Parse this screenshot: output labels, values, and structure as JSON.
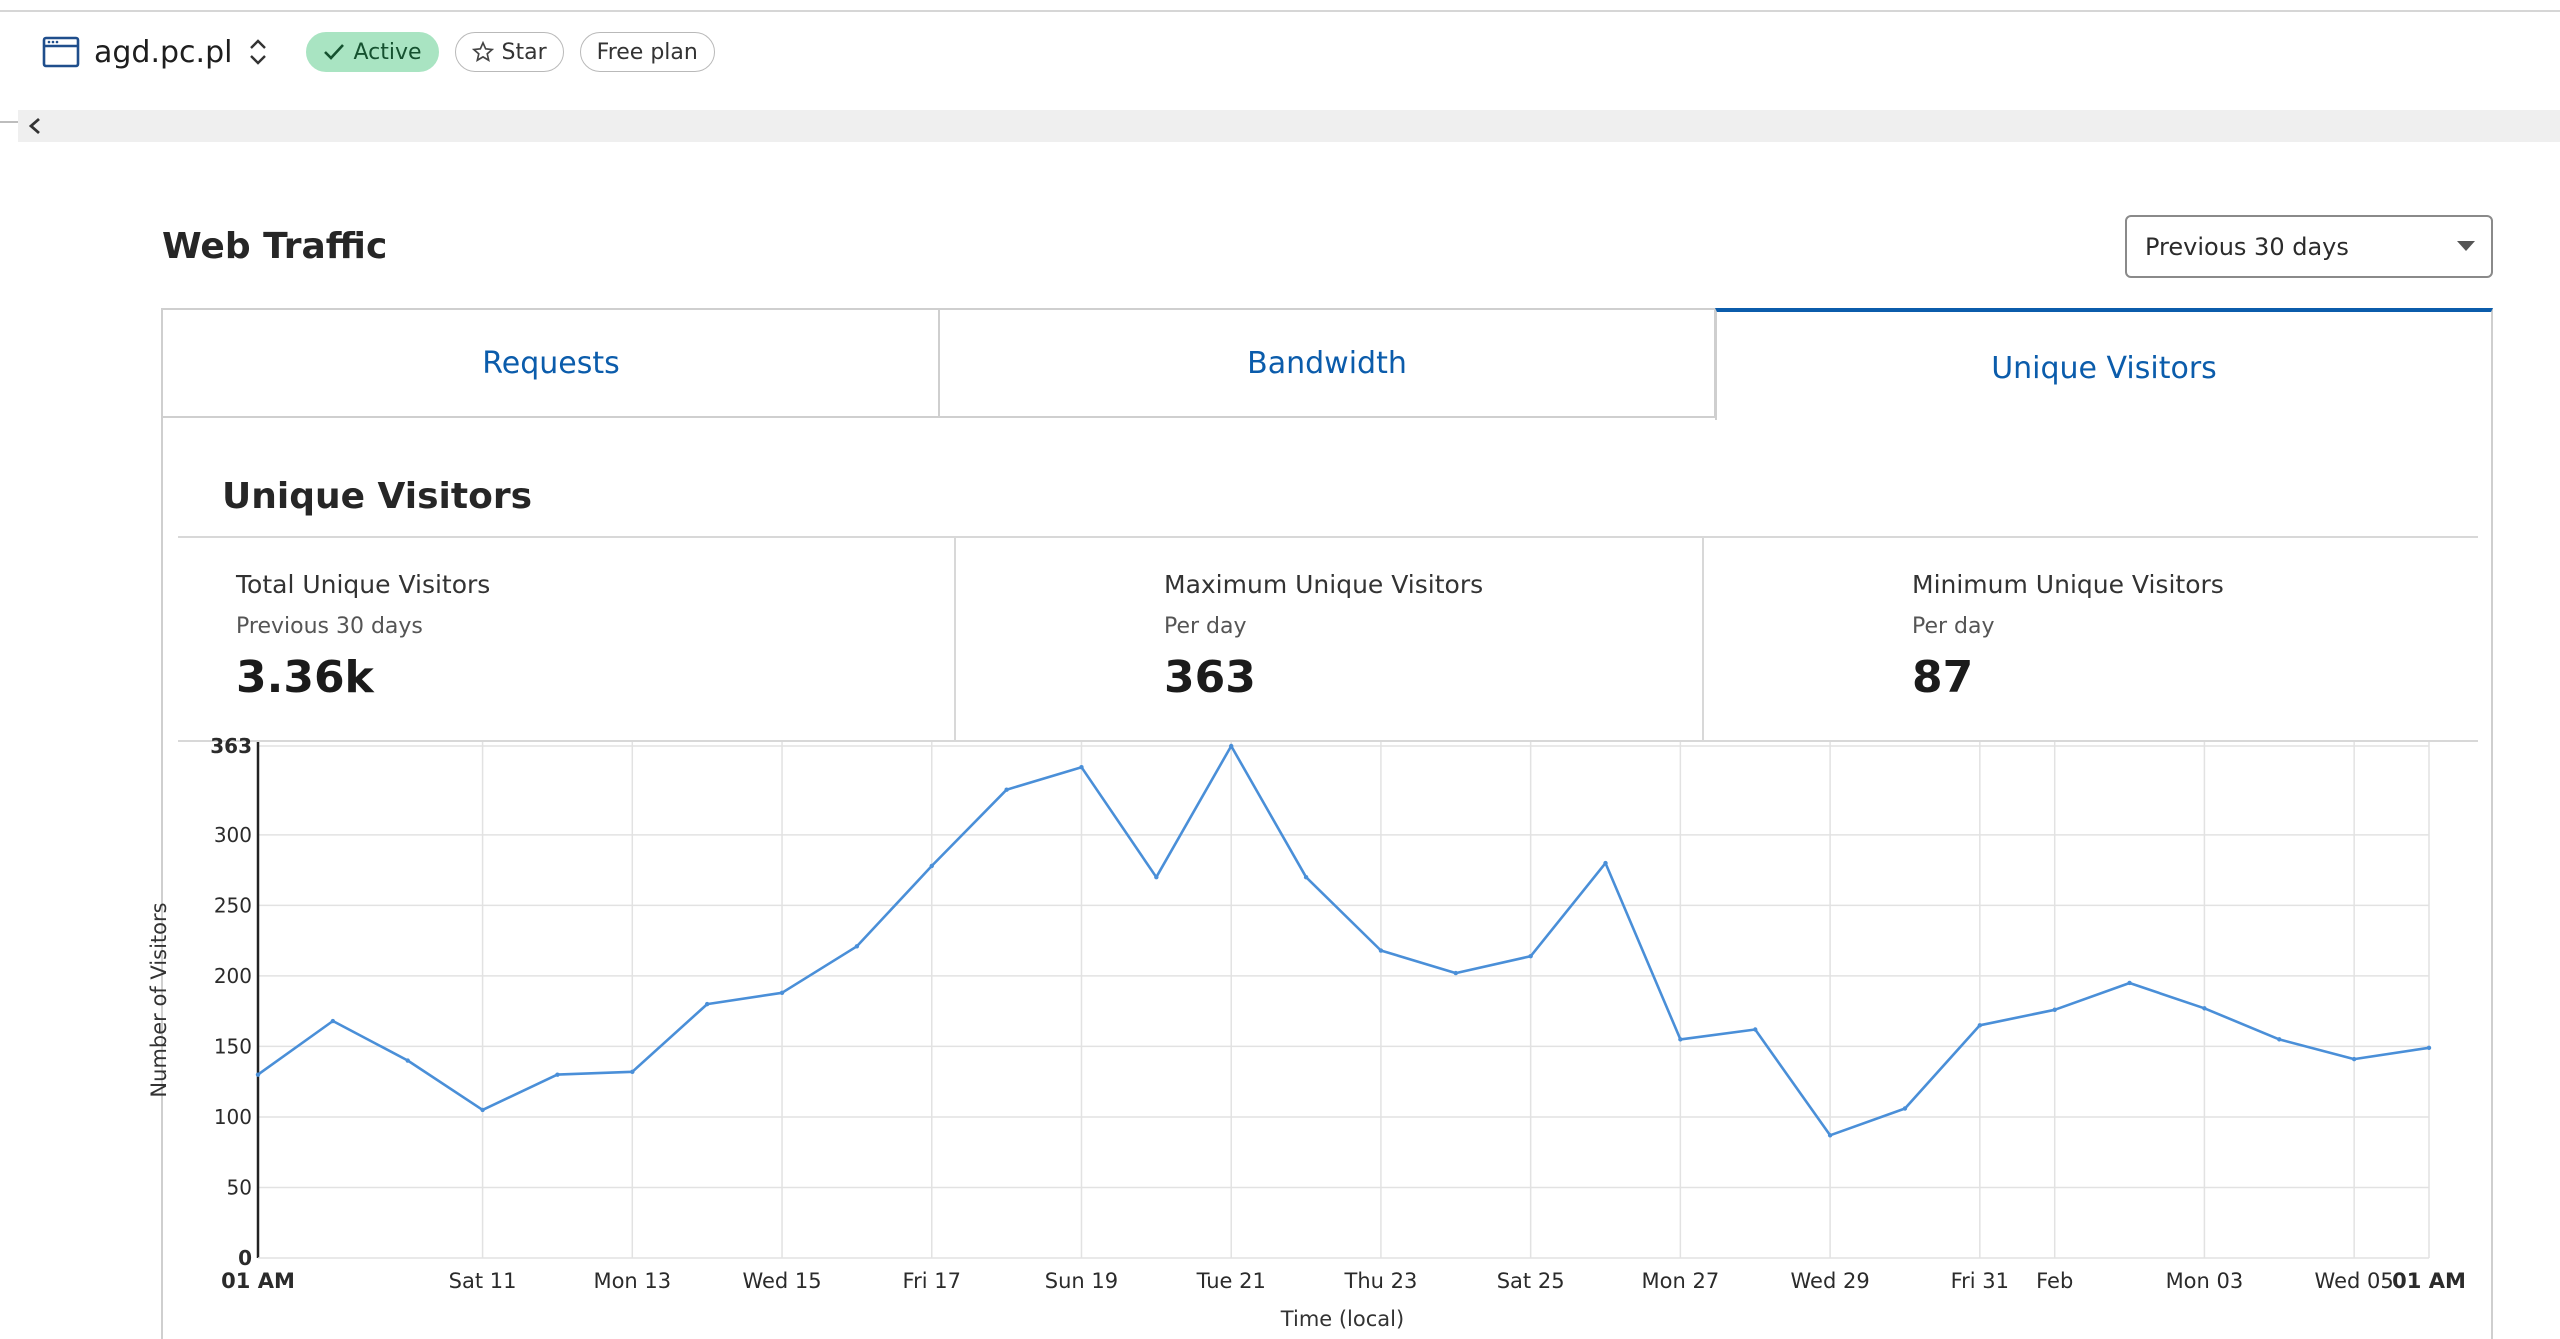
{
  "header": {
    "site_name": "agd.pc.pl",
    "status": "Active",
    "star_label": "Star",
    "plan": "Free plan"
  },
  "section": {
    "title": "Web Traffic",
    "range": "Previous 30 days"
  },
  "tabs": [
    {
      "label": "Requests"
    },
    {
      "label": "Bandwidth"
    },
    {
      "label": "Unique Visitors"
    }
  ],
  "panel": {
    "title": "Unique Visitors",
    "stats": [
      {
        "label": "Total Unique Visitors",
        "sub": "Previous 30 days",
        "value": "3.36k"
      },
      {
        "label": "Maximum Unique Visitors",
        "sub": "Per day",
        "value": "363"
      },
      {
        "label": "Minimum Unique Visitors",
        "sub": "Per day",
        "value": "87"
      }
    ]
  },
  "colors": {
    "accent": "#0b5cab",
    "line": "#4a8fd8",
    "active_badge": "#a9e4c2"
  },
  "chart_data": {
    "type": "line",
    "xlabel": "Time (local)",
    "ylabel": "Number of Visitors",
    "ylim": [
      0,
      363
    ],
    "y_ticks": [
      0,
      50,
      100,
      150,
      200,
      250,
      300,
      363
    ],
    "grid": true,
    "x_tick_labels": [
      {
        "index": 0,
        "label": "01 AM",
        "bold": true
      },
      {
        "index": 3,
        "label": "Sat 11"
      },
      {
        "index": 5,
        "label": "Mon 13"
      },
      {
        "index": 7,
        "label": "Wed 15"
      },
      {
        "index": 9,
        "label": "Fri 17"
      },
      {
        "index": 11,
        "label": "Sun 19"
      },
      {
        "index": 13,
        "label": "Tue 21"
      },
      {
        "index": 15,
        "label": "Thu 23"
      },
      {
        "index": 17,
        "label": "Sat 25"
      },
      {
        "index": 19,
        "label": "Mon 27"
      },
      {
        "index": 21,
        "label": "Wed 29"
      },
      {
        "index": 23,
        "label": "Fri 31"
      },
      {
        "index": 24,
        "label": "Feb"
      },
      {
        "index": 26,
        "label": "Mon 03"
      },
      {
        "index": 28,
        "label": "Wed 05"
      },
      {
        "index": 29,
        "label": "01 AM",
        "bold": true
      }
    ],
    "series": [
      {
        "values": [
          130,
          168,
          140,
          105,
          130,
          132,
          180,
          188,
          221,
          278,
          332,
          348,
          270,
          363,
          270,
          218,
          202,
          214,
          280,
          155,
          162,
          87,
          106,
          165,
          176,
          195,
          177,
          155,
          141,
          149
        ]
      }
    ]
  }
}
